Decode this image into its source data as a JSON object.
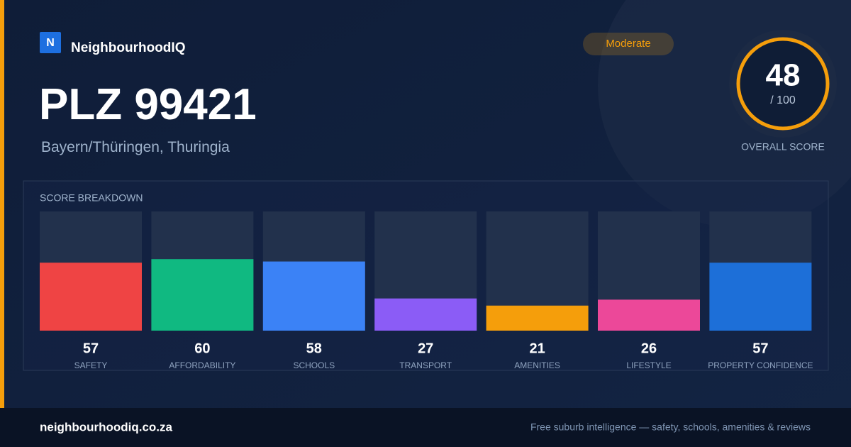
{
  "header": {
    "logo": "N",
    "brand": "NeighbourhoodIQ",
    "badge": "Moderate"
  },
  "title": "PLZ 99421",
  "subtitle": "Bayern/Thüringen, Thuringia",
  "overall": {
    "score": 48,
    "max_label": "/ 100",
    "label": "OVERALL SCORE"
  },
  "chart_data": {
    "type": "bar",
    "title": "SCORE BREAKDOWN",
    "categories": [
      "SAFETY",
      "AFFORDABILITY",
      "SCHOOLS",
      "TRANSPORT",
      "AMENITIES",
      "LIFESTYLE",
      "PROPERTY CONFIDENCE"
    ],
    "values": [
      57,
      60,
      58,
      27,
      21,
      26,
      57
    ],
    "colors": [
      "#ef4444",
      "#10b981",
      "#3b82f6",
      "#8b5cf6",
      "#f59e0b",
      "#ec4899",
      "#1d6fd8"
    ],
    "ylim": [
      0,
      100
    ]
  },
  "footer": {
    "site": "neighbourhoodiq.co.za",
    "tagline": "Free suburb intelligence — safety, schools, amenities & reviews"
  }
}
